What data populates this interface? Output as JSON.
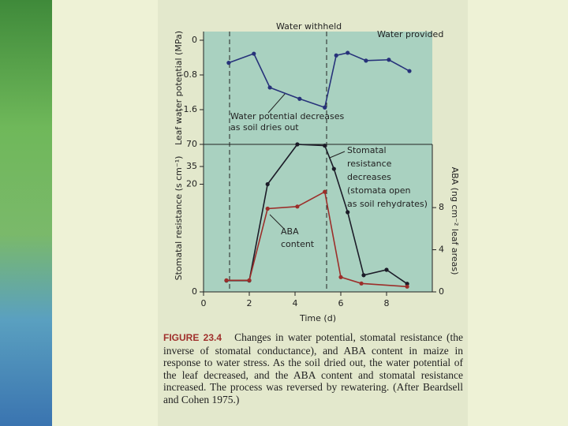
{
  "chart_data": [
    {
      "type": "line",
      "ylabel": "Leaf water potential (MPa)",
      "xlim": [
        0,
        10
      ],
      "ylim": [
        -2.4,
        0.2
      ],
      "yticks": [
        0,
        {
          "value": -0.8,
          "label": "–0.8"
        },
        {
          "value": -1.6,
          "label": "–1.6"
        }
      ],
      "annotations": [
        [
          "Water withheld"
        ],
        [
          "Water provided"
        ],
        [
          "Water potential decreases",
          "as soil dries out"
        ]
      ],
      "series": [
        {
          "name": "Leaf water potential",
          "color": "#27327a",
          "x": [
            1.1,
            2.2,
            2.9,
            4.2,
            5.3,
            5.8,
            6.3,
            7.1,
            8.1,
            9.0
          ],
          "values": [
            -0.52,
            -0.31,
            -1.09,
            -1.35,
            -1.55,
            -0.35,
            -0.29,
            -0.47,
            -0.45,
            -0.71
          ]
        }
      ]
    },
    {
      "type": "line",
      "ylabel": "Stomatal resistance (s cm⁻¹)",
      "y2label": "ABA (ng cm⁻² leaf areas)",
      "xlabel": "Time (d)",
      "xlim": [
        0,
        10
      ],
      "xticks": [
        0,
        2,
        4,
        6,
        8
      ],
      "ylim": [
        0,
        70
      ],
      "yticks": [
        0,
        20,
        35,
        70
      ],
      "y2lim": [
        0,
        14
      ],
      "y2ticks": [
        0,
        4,
        8
      ],
      "annotations": [
        [
          "Stomatal",
          "resistance",
          "decreases",
          "(stomata open",
          "as soil rehydrates)"
        ],
        [
          "ABA",
          "content"
        ]
      ],
      "series": [
        {
          "name": "Stomatal resistance",
          "color": "#1c1c28",
          "x": [
            1.0,
            2.0,
            2.8,
            4.1,
            5.3,
            5.7,
            6.3,
            7.0,
            8.0,
            8.9
          ],
          "values": [
            2.1,
            2.1,
            20,
            70,
            68,
            33,
            14.8,
            3.1,
            4.1,
            1.5
          ]
        },
        {
          "name": "ABA content",
          "color": "#9c2e2a",
          "axis": "y2",
          "x": [
            1.0,
            2.0,
            2.8,
            4.1,
            5.3,
            6.0,
            6.9,
            8.9
          ],
          "values": [
            1.1,
            1.1,
            7.9,
            8.1,
            9.5,
            1.4,
            0.8,
            0.5
          ]
        }
      ]
    }
  ],
  "figure_label": "FIGURE 23.4",
  "caption": "Changes in water potential, stomatal resistance (the inverse of stomatal conductance), and ABA content in maize in response to water stress. As the soil dried out, the water potential of the leaf decreased, and the ABA content and stomatal resistance increased. The process was reversed by rewatering. (After Beardsell and Cohen 1975.)"
}
